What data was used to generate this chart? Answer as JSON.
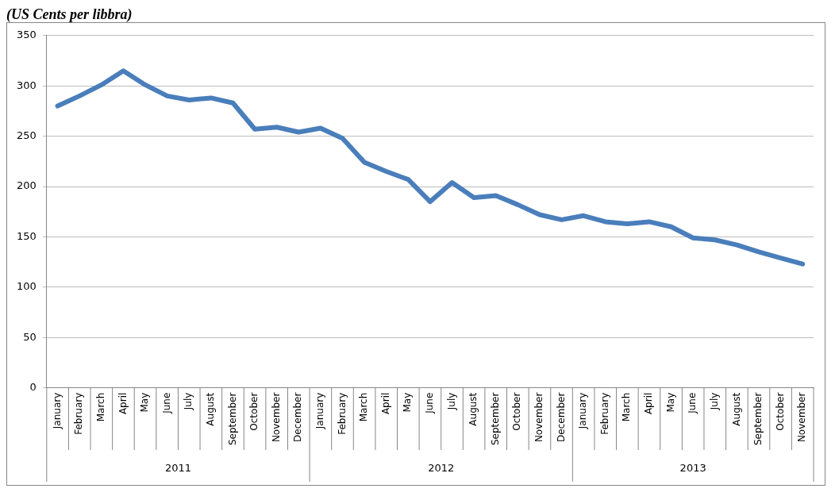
{
  "chart_data": {
    "type": "line",
    "title": "(US Cents per libbra)",
    "categories": [
      "January",
      "February",
      "March",
      "April",
      "May",
      "June",
      "July",
      "August",
      "September",
      "October",
      "November",
      "December",
      "January",
      "February",
      "March",
      "April",
      "May",
      "June",
      "July",
      "August",
      "September",
      "October",
      "November",
      "December",
      "January",
      "February",
      "March",
      "April",
      "May",
      "June",
      "July",
      "August",
      "September",
      "October",
      "November"
    ],
    "series": [
      {
        "color": "#4a7ebb",
        "values": [
          280,
          290,
          301,
          315,
          301,
          290,
          286,
          288,
          283,
          257,
          259,
          254,
          258,
          248,
          224,
          215,
          207,
          185,
          204,
          189,
          191,
          182,
          172,
          167,
          171,
          165,
          163,
          165,
          160,
          149,
          147,
          142,
          135,
          129,
          123
        ]
      }
    ],
    "ylim": [
      0,
      350
    ],
    "yticks": [
      0,
      50,
      100,
      150,
      200,
      250,
      300,
      350
    ],
    "grid": "y",
    "legend": false,
    "marker": "none",
    "line_style": "solid",
    "annotations": [
      "2011",
      "2012",
      "2013"
    ]
  }
}
